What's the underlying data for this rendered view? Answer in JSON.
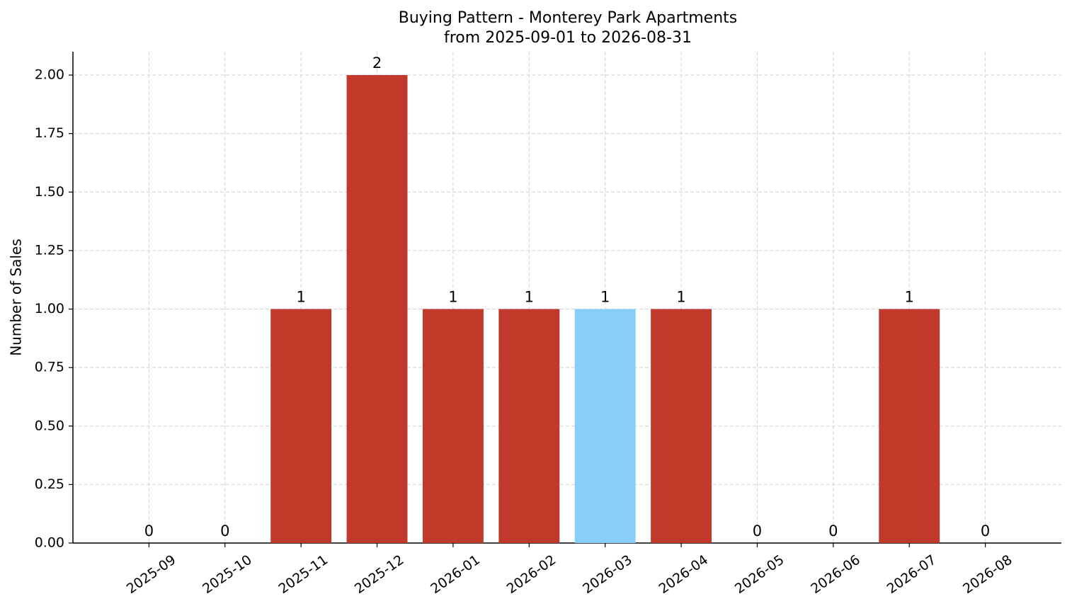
{
  "chart_data": {
    "type": "bar",
    "title": "Buying Pattern - Monterey Park Apartments",
    "subtitle": "from 2025-09-01 to 2026-08-31",
    "ylabel": "Number of Sales",
    "categories": [
      "2025-09",
      "2025-10",
      "2025-11",
      "2025-12",
      "2026-01",
      "2026-02",
      "2026-03",
      "2026-04",
      "2026-05",
      "2026-06",
      "2026-07",
      "2026-08"
    ],
    "values": [
      0,
      0,
      1,
      2,
      1,
      1,
      1,
      1,
      0,
      0,
      1,
      0
    ],
    "colors": [
      "#c0392b",
      "#c0392b",
      "#c0392b",
      "#c0392b",
      "#c0392b",
      "#c0392b",
      "#87cefa",
      "#c0392b",
      "#c0392b",
      "#c0392b",
      "#c0392b",
      "#c0392b"
    ],
    "ylim": [
      0,
      2.1
    ],
    "yticks": [
      {
        "value": 0,
        "label": "0.00"
      },
      {
        "value": 0.25,
        "label": "0.25"
      },
      {
        "value": 0.5,
        "label": "0.50"
      },
      {
        "value": 0.75,
        "label": "0.75"
      },
      {
        "value": 1,
        "label": "1.00"
      },
      {
        "value": 1.25,
        "label": "1.25"
      },
      {
        "value": 1.5,
        "label": "1.50"
      },
      {
        "value": 1.75,
        "label": "1.75"
      },
      {
        "value": 2,
        "label": "2.00"
      }
    ],
    "grid": true
  }
}
